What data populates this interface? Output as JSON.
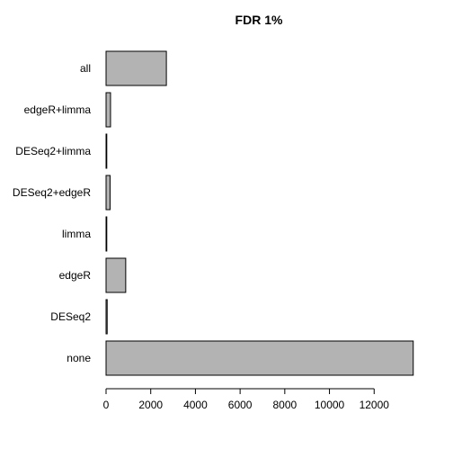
{
  "chart_data": {
    "type": "bar",
    "orientation": "horizontal",
    "title": "FDR 1%",
    "xlabel": "",
    "ylabel": "",
    "categories": [
      "all",
      "edgeR+limma",
      "DESeq2+limma",
      "DESeq2+edgeR",
      "limma",
      "edgeR",
      "DESeq2",
      "none"
    ],
    "values": [
      2700,
      200,
      20,
      180,
      10,
      880,
      50,
      13750
    ],
    "xlim": [
      0,
      13800
    ],
    "xticks": [
      0,
      2000,
      4000,
      6000,
      8000,
      10000,
      12000
    ],
    "grid": false,
    "bar_color": "#b3b3b3",
    "bar_border_color": "#000000"
  }
}
